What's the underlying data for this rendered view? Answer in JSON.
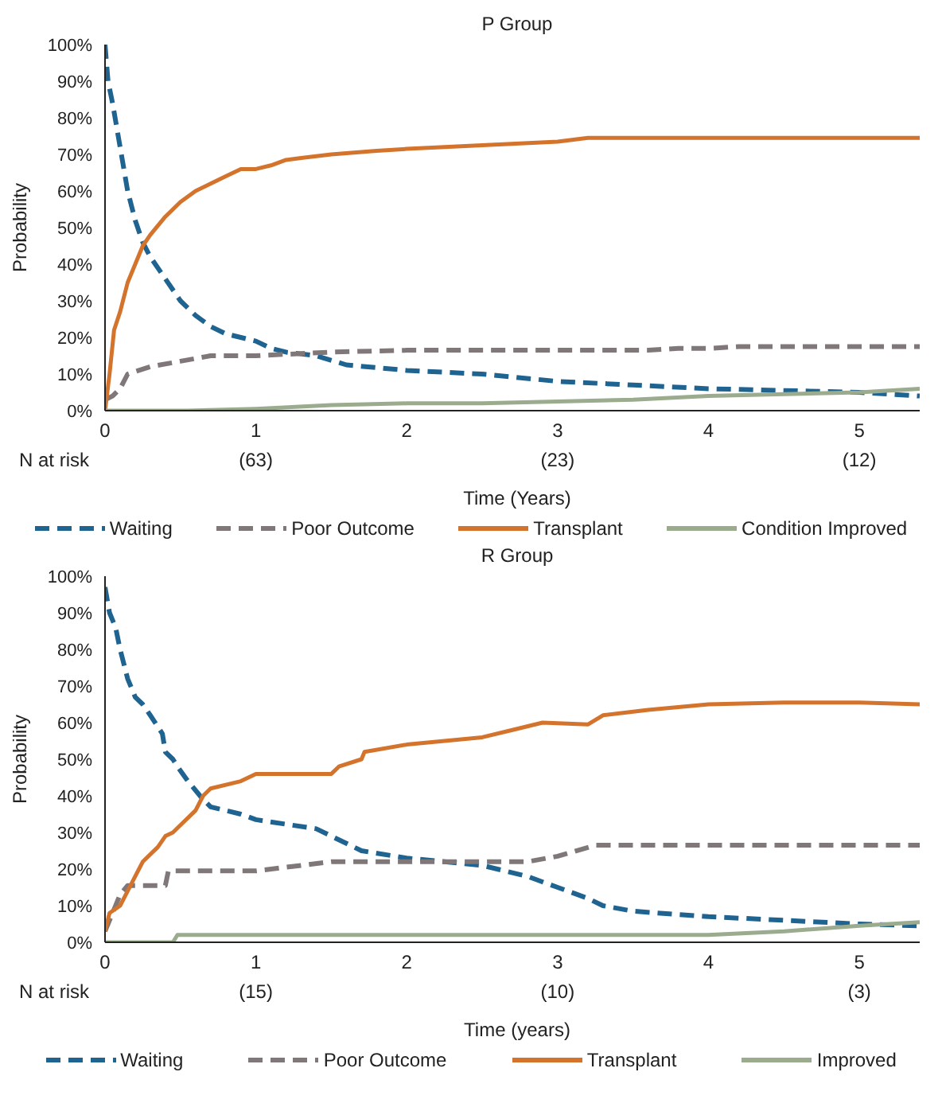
{
  "chart_data": [
    {
      "type": "line",
      "title": "P Group",
      "xlabel": "Time (Years)",
      "ylabel": "Probability",
      "xlim": [
        0,
        5.4
      ],
      "xticks": [
        0,
        1,
        2,
        3,
        4,
        5
      ],
      "ylim": [
        0,
        100
      ],
      "yticks": [
        {
          "value": 0,
          "label": "0%"
        },
        {
          "value": 10,
          "label": "10%"
        },
        {
          "value": 20,
          "label": "20%"
        },
        {
          "value": 30,
          "label": "30%"
        },
        {
          "value": 40,
          "label": "40%"
        },
        {
          "value": 50,
          "label": "50%"
        },
        {
          "value": 60,
          "label": "60%"
        },
        {
          "value": 70,
          "label": "70%"
        },
        {
          "value": 80,
          "label": "80%"
        },
        {
          "value": 90,
          "label": "90%"
        },
        {
          "value": 100,
          "label": "100%"
        }
      ],
      "grid": false,
      "legend": "bottom",
      "marker": "none",
      "annotations": [
        "N at risk",
        "(63)",
        "(23)",
        "(12)"
      ],
      "series": [
        {
          "name": "Waiting",
          "color": "#1f6391",
          "line_style": "dashed",
          "x": [
            0,
            0.02,
            0.05,
            0.1,
            0.15,
            0.2,
            0.25,
            0.3,
            0.4,
            0.5,
            0.6,
            0.7,
            0.8,
            0.9,
            1.0,
            1.1,
            1.2,
            1.4,
            1.6,
            2,
            2.5,
            3,
            3.5,
            4,
            4.5,
            5,
            5.4
          ],
          "values": [
            100,
            90,
            84,
            72,
            60,
            52,
            46,
            42,
            36,
            30,
            26,
            23,
            21,
            20,
            19,
            17,
            16,
            15,
            12.5,
            11,
            10,
            8,
            7,
            6,
            5.5,
            5,
            4
          ]
        },
        {
          "name": "Poor Outcome",
          "color": "#7f7778",
          "line_style": "dashed",
          "x": [
            0,
            0.05,
            0.1,
            0.15,
            0.3,
            0.5,
            0.7,
            1,
            1.5,
            2,
            3,
            3.6,
            3.8,
            4,
            4.2,
            5.4
          ],
          "values": [
            3,
            4,
            6,
            10,
            12,
            13.5,
            15,
            15,
            16,
            16.5,
            16.5,
            16.5,
            17,
            17,
            17.5,
            17.5
          ]
        },
        {
          "name": "Transplant",
          "color": "#d4732c",
          "line_style": "solid",
          "x": [
            0,
            0.03,
            0.06,
            0.1,
            0.15,
            0.2,
            0.25,
            0.3,
            0.4,
            0.5,
            0.6,
            0.7,
            0.8,
            0.9,
            1.0,
            1.1,
            1.2,
            1.3,
            1.5,
            1.8,
            2,
            2.5,
            3,
            3.2,
            4,
            5.4
          ],
          "values": [
            0,
            10,
            22,
            27,
            35,
            40,
            45,
            48,
            53,
            57,
            60,
            62,
            64,
            66,
            66,
            67,
            68.5,
            69,
            70,
            71,
            71.5,
            72.5,
            73.5,
            74.5,
            74.5,
            74.5
          ]
        },
        {
          "name": "Condition Improved",
          "color": "#9aab8e",
          "line_style": "solid",
          "x": [
            0,
            0.55,
            1,
            1.5,
            2,
            2.5,
            3,
            3.5,
            4,
            4.5,
            5,
            5.4
          ],
          "values": [
            0,
            0,
            0.5,
            1.5,
            2,
            2,
            2.5,
            3,
            4,
            4.5,
            5,
            6
          ]
        }
      ]
    },
    {
      "type": "line",
      "title": "R Group",
      "xlabel": "Time (years)",
      "ylabel": "Probability",
      "xlim": [
        0,
        5.4
      ],
      "xticks": [
        0,
        1,
        2,
        3,
        4,
        5
      ],
      "ylim": [
        0,
        100
      ],
      "yticks": [
        {
          "value": 0,
          "label": "0%"
        },
        {
          "value": 10,
          "label": "10%"
        },
        {
          "value": 20,
          "label": "20%"
        },
        {
          "value": 30,
          "label": "30%"
        },
        {
          "value": 40,
          "label": "40%"
        },
        {
          "value": 50,
          "label": "50%"
        },
        {
          "value": 60,
          "label": "60%"
        },
        {
          "value": 70,
          "label": "70%"
        },
        {
          "value": 80,
          "label": "80%"
        },
        {
          "value": 90,
          "label": "90%"
        },
        {
          "value": 100,
          "label": "100%"
        }
      ],
      "grid": false,
      "legend": "bottom",
      "marker": "none",
      "annotations": [
        "N at risk",
        "(15)",
        "(10)",
        "(3)"
      ],
      "series": [
        {
          "name": "Waiting",
          "color": "#1f6391",
          "line_style": "dashed",
          "x": [
            0,
            0.03,
            0.07,
            0.1,
            0.15,
            0.2,
            0.25,
            0.3,
            0.38,
            0.4,
            0.45,
            0.48,
            0.55,
            0.65,
            0.7,
            0.9,
            1.0,
            1.4,
            1.6,
            1.7,
            2,
            2.5,
            2.8,
            3,
            3.2,
            3.3,
            3.5,
            4,
            4.5,
            5,
            5.4
          ],
          "values": [
            97,
            90,
            86,
            80,
            72,
            67,
            65,
            62,
            57,
            52,
            50,
            48,
            44,
            39,
            37,
            35,
            33.5,
            31,
            27,
            25,
            23,
            21,
            18,
            15,
            12,
            10,
            8.5,
            7,
            6,
            5,
            4.5
          ]
        },
        {
          "name": "Poor Outcome",
          "color": "#7f7778",
          "line_style": "dashed",
          "x": [
            0,
            0.05,
            0.1,
            0.15,
            0.4,
            0.42,
            1,
            1.2,
            1.5,
            2.8,
            3,
            3.25,
            5.4
          ],
          "values": [
            3,
            8,
            13,
            15.5,
            15.5,
            19.5,
            19.5,
            20.5,
            22,
            22,
            23.5,
            26.5,
            26.5
          ]
        },
        {
          "name": "Transplant",
          "color": "#d4732c",
          "line_style": "solid",
          "x": [
            0,
            0.03,
            0.1,
            0.15,
            0.2,
            0.25,
            0.35,
            0.4,
            0.45,
            0.5,
            0.6,
            0.65,
            0.7,
            0.9,
            1,
            1.2,
            1.5,
            1.55,
            1.7,
            1.72,
            2,
            2.5,
            2.7,
            2.9,
            3.2,
            3.3,
            3.6,
            4,
            4.5,
            5,
            5.4
          ],
          "values": [
            3,
            8,
            10,
            14,
            18,
            22,
            26,
            29,
            30,
            32,
            36,
            40,
            42,
            44,
            46,
            46,
            46,
            48,
            50,
            52,
            54,
            56,
            58,
            60,
            59.5,
            62,
            63.5,
            65,
            65.5,
            65.5,
            65
          ]
        },
        {
          "name": "Improved",
          "color": "#9aab8e",
          "line_style": "solid",
          "x": [
            0,
            0.45,
            0.48,
            3.5,
            4,
            4.5,
            5,
            5.4
          ],
          "values": [
            0,
            0,
            2,
            2,
            2,
            3,
            4.5,
            5.5
          ]
        }
      ]
    }
  ]
}
